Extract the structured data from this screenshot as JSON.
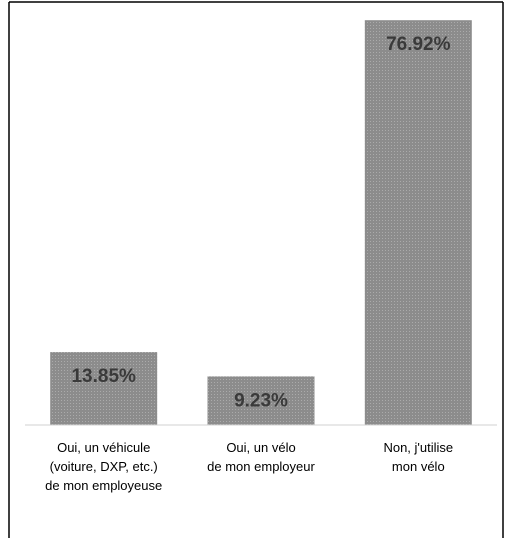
{
  "chart_data": {
    "type": "bar",
    "categories": [
      [
        "Oui, un véhicule",
        "(voiture, DXP, etc.)",
        "de mon employeuse"
      ],
      [
        "Oui, un vélo",
        "de mon employeur"
      ],
      [
        "Non, j'utilise",
        "mon vélo"
      ]
    ],
    "values": [
      13.85,
      9.23,
      76.92
    ],
    "data_labels": [
      "13.85%",
      "9.23%",
      "76.92%"
    ],
    "title": "",
    "xlabel": "",
    "ylabel": "",
    "ylim": [
      0,
      80
    ],
    "grid": false,
    "legend": "none",
    "colors": {
      "bar": "#8c8c8c",
      "bar_dot": "#b3b3b3",
      "label": "#3a3a3a",
      "axis": "#d0d0d0",
      "frame": "#000000"
    }
  }
}
